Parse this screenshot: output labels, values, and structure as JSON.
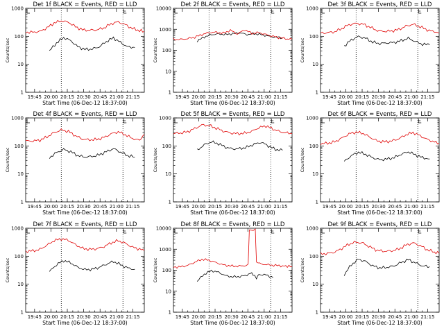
{
  "chart_data": [
    {
      "type": "line",
      "title": "Det 1f BLACK = Events, RED = LLD",
      "xlabel": "Start Time (06-Dec-12 18:37:00)",
      "ylabel": "Counts/sec",
      "yscale": "log",
      "ylim": [
        1,
        1000
      ],
      "xlim": [
        0,
        1
      ],
      "yticks": [
        "1",
        "10",
        "100",
        "1000"
      ],
      "xticks": [
        "19:45",
        "20:00",
        "20:15",
        "20:30",
        "20:45",
        "21:00",
        "21:15"
      ],
      "vlines": [
        0.3,
        0.82
      ],
      "series": [
        {
          "name": "Events",
          "color": "#000000",
          "x": [
            0.2,
            0.26,
            0.32,
            0.38,
            0.44,
            0.5,
            0.56,
            0.62,
            0.68,
            0.74,
            0.8,
            0.86,
            0.92
          ],
          "y": [
            30,
            58,
            90,
            70,
            42,
            34,
            35,
            42,
            65,
            88,
            60,
            42,
            40
          ]
        },
        {
          "name": "LLD",
          "color": "#e00000",
          "x": [
            0,
            0.06,
            0.12,
            0.18,
            0.24,
            0.3,
            0.36,
            0.42,
            0.48,
            0.54,
            0.6,
            0.66,
            0.72,
            0.78,
            0.84,
            0.9,
            0.96,
            1.0
          ],
          "y": [
            140,
            140,
            150,
            200,
            300,
            360,
            320,
            220,
            170,
            165,
            170,
            200,
            280,
            330,
            260,
            190,
            160,
            150
          ]
        }
      ]
    },
    {
      "type": "line",
      "title": "Det 2f BLACK = Events, RED = LLD",
      "xlabel": "Start Time (06-Dec-12 18:37:00)",
      "ylabel": "Counts/sec",
      "yscale": "log",
      "ylim": [
        1,
        10000
      ],
      "xlim": [
        0,
        1
      ],
      "yticks": [
        "1",
        "10",
        "100",
        "1000",
        "10000"
      ],
      "xticks": [
        "19:45",
        "20:00",
        "20:15",
        "20:30",
        "20:45",
        "21:00",
        "21:15"
      ],
      "vlines": [
        0.3,
        0.82
      ],
      "series": [
        {
          "name": "Events",
          "color": "#000000",
          "x": [
            0.2,
            0.26,
            0.32,
            0.38,
            0.44,
            0.5,
            0.56,
            0.62,
            0.68,
            0.74,
            0.8,
            0.86,
            0.92
          ],
          "y": [
            280,
            430,
            560,
            600,
            560,
            620,
            680,
            560,
            620,
            560,
            470,
            420,
            400
          ]
        },
        {
          "name": "LLD",
          "color": "#e00000",
          "x": [
            0,
            0.06,
            0.12,
            0.18,
            0.24,
            0.3,
            0.36,
            0.42,
            0.48,
            0.54,
            0.6,
            0.66,
            0.72,
            0.78,
            0.84,
            0.9,
            0.96,
            1.0
          ],
          "y": [
            330,
            330,
            360,
            420,
            560,
            700,
            720,
            650,
            900,
            600,
            950,
            640,
            700,
            560,
            460,
            390,
            350,
            330
          ]
        }
      ]
    },
    {
      "type": "line",
      "title": "Det 3f BLACK = Events, RED = LLD",
      "xlabel": "Start Time (06-Dec-12 18:37:00)",
      "ylabel": "Counts/sec",
      "yscale": "log",
      "ylim": [
        1,
        1000
      ],
      "xlim": [
        0,
        1
      ],
      "yticks": [
        "1",
        "10",
        "100",
        "1000"
      ],
      "xticks": [
        "19:45",
        "20:00",
        "20:15",
        "20:30",
        "20:45",
        "21:00",
        "21:15"
      ],
      "vlines": [
        0.3,
        0.82
      ],
      "series": [
        {
          "name": "Events",
          "color": "#000000",
          "x": [
            0.2,
            0.26,
            0.32,
            0.38,
            0.44,
            0.5,
            0.56,
            0.62,
            0.68,
            0.74,
            0.8,
            0.86,
            0.92
          ],
          "y": [
            45,
            75,
            98,
            85,
            62,
            55,
            58,
            60,
            70,
            85,
            65,
            52,
            50
          ]
        },
        {
          "name": "LLD",
          "color": "#e00000",
          "x": [
            0,
            0.06,
            0.12,
            0.18,
            0.24,
            0.3,
            0.36,
            0.42,
            0.48,
            0.54,
            0.6,
            0.66,
            0.72,
            0.78,
            0.84,
            0.9,
            0.96,
            1.0
          ],
          "y": [
            130,
            135,
            145,
            190,
            260,
            290,
            270,
            210,
            160,
            150,
            155,
            175,
            230,
            270,
            220,
            170,
            145,
            130
          ]
        }
      ]
    },
    {
      "type": "line",
      "title": "Det 4f BLACK = Events, RED = LLD",
      "xlabel": "Start Time (06-Dec-12 18:37:00)",
      "ylabel": "Counts/sec",
      "yscale": "log",
      "ylim": [
        1,
        1000
      ],
      "xlim": [
        0,
        1
      ],
      "yticks": [
        "1",
        "10",
        "100",
        "1000"
      ],
      "xticks": [
        "19:45",
        "20:00",
        "20:15",
        "20:30",
        "20:45",
        "21:00",
        "21:15"
      ],
      "vlines": [
        0.3,
        0.82
      ],
      "series": [
        {
          "name": "Events",
          "color": "#000000",
          "x": [
            0.2,
            0.26,
            0.32,
            0.38,
            0.44,
            0.5,
            0.56,
            0.62,
            0.68,
            0.74,
            0.8,
            0.86,
            0.92
          ],
          "y": [
            38,
            58,
            75,
            62,
            45,
            40,
            42,
            48,
            62,
            80,
            60,
            45,
            40
          ]
        },
        {
          "name": "LLD",
          "color": "#e00000",
          "x": [
            0,
            0.06,
            0.12,
            0.18,
            0.24,
            0.3,
            0.36,
            0.42,
            0.48,
            0.54,
            0.6,
            0.66,
            0.72,
            0.78,
            0.84,
            0.9,
            0.96,
            1.0
          ],
          "y": [
            150,
            150,
            160,
            210,
            300,
            370,
            330,
            230,
            175,
            165,
            170,
            200,
            270,
            320,
            250,
            185,
            160,
            260
          ]
        }
      ]
    },
    {
      "type": "line",
      "title": "Det 5f BLACK = Events, RED = LLD",
      "xlabel": "Start Time (06-Dec-12 18:37:00)",
      "ylabel": "Counts/sec",
      "yscale": "log",
      "ylim": [
        1,
        1000
      ],
      "xlim": [
        0,
        1
      ],
      "yticks": [
        "1",
        "10",
        "100",
        "1000"
      ],
      "xticks": [
        "19:45",
        "20:00",
        "20:15",
        "20:30",
        "20:45",
        "21:00",
        "21:15"
      ],
      "vlines": [
        0.3,
        0.82
      ],
      "series": [
        {
          "name": "Events",
          "color": "#000000",
          "x": [
            0.2,
            0.26,
            0.32,
            0.38,
            0.44,
            0.5,
            0.56,
            0.62,
            0.68,
            0.74,
            0.8,
            0.86,
            0.92
          ],
          "y": [
            70,
            110,
            140,
            120,
            90,
            78,
            80,
            90,
            115,
            135,
            100,
            75,
            70
          ]
        },
        {
          "name": "LLD",
          "color": "#e00000",
          "x": [
            0,
            0.06,
            0.12,
            0.18,
            0.24,
            0.3,
            0.36,
            0.42,
            0.48,
            0.54,
            0.6,
            0.66,
            0.72,
            0.78,
            0.84,
            0.9,
            0.96,
            1.0
          ],
          "y": [
            280,
            290,
            320,
            420,
            560,
            540,
            430,
            340,
            290,
            275,
            285,
            330,
            450,
            520,
            400,
            320,
            290,
            280
          ]
        }
      ]
    },
    {
      "type": "line",
      "title": "Det 6f BLACK = Events, RED = LLD",
      "xlabel": "Start Time (06-Dec-12 18:37:00)",
      "ylabel": "Counts/sec",
      "yscale": "log",
      "ylim": [
        1,
        1000
      ],
      "xlim": [
        0,
        1
      ],
      "yticks": [
        "1",
        "10",
        "100",
        "1000"
      ],
      "xticks": [
        "19:45",
        "20:00",
        "20:15",
        "20:30",
        "20:45",
        "21:00",
        "21:15"
      ],
      "vlines": [
        0.3,
        0.82
      ],
      "series": [
        {
          "name": "Events",
          "color": "#000000",
          "x": [
            0.2,
            0.26,
            0.32,
            0.38,
            0.44,
            0.5,
            0.56,
            0.62,
            0.68,
            0.74,
            0.8,
            0.86,
            0.92
          ],
          "y": [
            28,
            45,
            60,
            50,
            38,
            32,
            34,
            38,
            50,
            62,
            48,
            38,
            34
          ]
        },
        {
          "name": "LLD",
          "color": "#e00000",
          "x": [
            0,
            0.06,
            0.12,
            0.18,
            0.24,
            0.3,
            0.36,
            0.42,
            0.48,
            0.54,
            0.6,
            0.66,
            0.72,
            0.78,
            0.84,
            0.9,
            0.96,
            1.0
          ],
          "y": [
            120,
            125,
            140,
            190,
            270,
            310,
            280,
            200,
            150,
            140,
            150,
            180,
            250,
            300,
            230,
            170,
            140,
            125
          ]
        }
      ]
    },
    {
      "type": "line",
      "title": "Det 7f BLACK = Events, RED = LLD",
      "xlabel": "Start Time (06-Dec-12 18:37:00)",
      "ylabel": "Counts/sec",
      "yscale": "log",
      "ylim": [
        1,
        1000
      ],
      "xlim": [
        0,
        1
      ],
      "yticks": [
        "1",
        "10",
        "100",
        "1000"
      ],
      "xticks": [
        "19:45",
        "20:00",
        "20:15",
        "20:30",
        "20:45",
        "21:00",
        "21:15"
      ],
      "vlines": [
        0.3,
        0.82
      ],
      "series": [
        {
          "name": "Events",
          "color": "#000000",
          "x": [
            0.2,
            0.26,
            0.32,
            0.38,
            0.44,
            0.5,
            0.56,
            0.62,
            0.68,
            0.74,
            0.8,
            0.86,
            0.92
          ],
          "y": [
            28,
            50,
            70,
            58,
            40,
            33,
            34,
            40,
            52,
            65,
            50,
            38,
            34
          ]
        },
        {
          "name": "LLD",
          "color": "#e00000",
          "x": [
            0,
            0.06,
            0.12,
            0.18,
            0.24,
            0.3,
            0.36,
            0.42,
            0.48,
            0.54,
            0.6,
            0.66,
            0.72,
            0.78,
            0.84,
            0.9,
            0.96,
            1.0
          ],
          "y": [
            150,
            155,
            175,
            250,
            360,
            420,
            370,
            260,
            190,
            175,
            185,
            220,
            300,
            360,
            290,
            210,
            180,
            160
          ]
        }
      ]
    },
    {
      "type": "line",
      "title": "Det 8f BLACK = Events, RED = LLD",
      "xlabel": "Start Time (06-Dec-12 18:37:00)",
      "ylabel": "Counts/sec",
      "yscale": "log",
      "ylim": [
        1,
        10000
      ],
      "xlim": [
        0,
        1
      ],
      "yticks": [
        "1",
        "10",
        "100",
        "1000",
        "10000"
      ],
      "xticks": [
        "19:45",
        "20:00",
        "20:15",
        "20:30",
        "20:45",
        "21:00",
        "21:15"
      ],
      "vlines": [
        0.3,
        0.82
      ],
      "series": [
        {
          "name": "Events",
          "color": "#000000",
          "x": [
            0.2,
            0.26,
            0.32,
            0.38,
            0.44,
            0.5,
            0.56,
            0.62,
            0.66,
            0.67,
            0.7,
            0.72,
            0.78,
            0.84
          ],
          "y": [
            30,
            65,
            95,
            80,
            55,
            48,
            50,
            58,
            75,
            60,
            42,
            62,
            60,
            45
          ]
        },
        {
          "name": "LLD",
          "color": "#e00000",
          "x": [
            0,
            0.06,
            0.12,
            0.18,
            0.24,
            0.3,
            0.36,
            0.42,
            0.48,
            0.54,
            0.6,
            0.63,
            0.64,
            0.69,
            0.7,
            0.74,
            0.8,
            0.86,
            0.92,
            1.0
          ],
          "y": [
            140,
            145,
            170,
            240,
            330,
            300,
            230,
            180,
            160,
            155,
            165,
            180,
            8500,
            8500,
            250,
            200,
            180,
            170,
            160,
            150
          ]
        }
      ]
    },
    {
      "type": "line",
      "title": "Det 9f BLACK = Events, RED = LLD",
      "xlabel": "Start Time (06-Dec-12 18:37:00)",
      "ylabel": "Counts/sec",
      "yscale": "log",
      "ylim": [
        1,
        1000
      ],
      "xlim": [
        0,
        1
      ],
      "yticks": [
        "1",
        "10",
        "100",
        "1000"
      ],
      "xticks": [
        "19:45",
        "20:00",
        "20:15",
        "20:30",
        "20:45",
        "21:00",
        "21:15"
      ],
      "vlines": [
        0.3,
        0.82
      ],
      "series": [
        {
          "name": "Events",
          "color": "#000000",
          "x": [
            0.2,
            0.26,
            0.32,
            0.38,
            0.44,
            0.5,
            0.56,
            0.62,
            0.68,
            0.74,
            0.8,
            0.86,
            0.92
          ],
          "y": [
            22,
            50,
            78,
            65,
            45,
            38,
            40,
            45,
            60,
            75,
            58,
            45,
            42
          ]
        },
        {
          "name": "LLD",
          "color": "#e00000",
          "x": [
            0,
            0.06,
            0.12,
            0.18,
            0.24,
            0.3,
            0.36,
            0.42,
            0.48,
            0.54,
            0.6,
            0.66,
            0.72,
            0.78,
            0.84,
            0.9,
            0.96,
            1.0
          ],
          "y": [
            120,
            125,
            140,
            190,
            270,
            320,
            290,
            210,
            160,
            150,
            155,
            180,
            250,
            300,
            240,
            170,
            140,
            125
          ]
        }
      ]
    }
  ]
}
